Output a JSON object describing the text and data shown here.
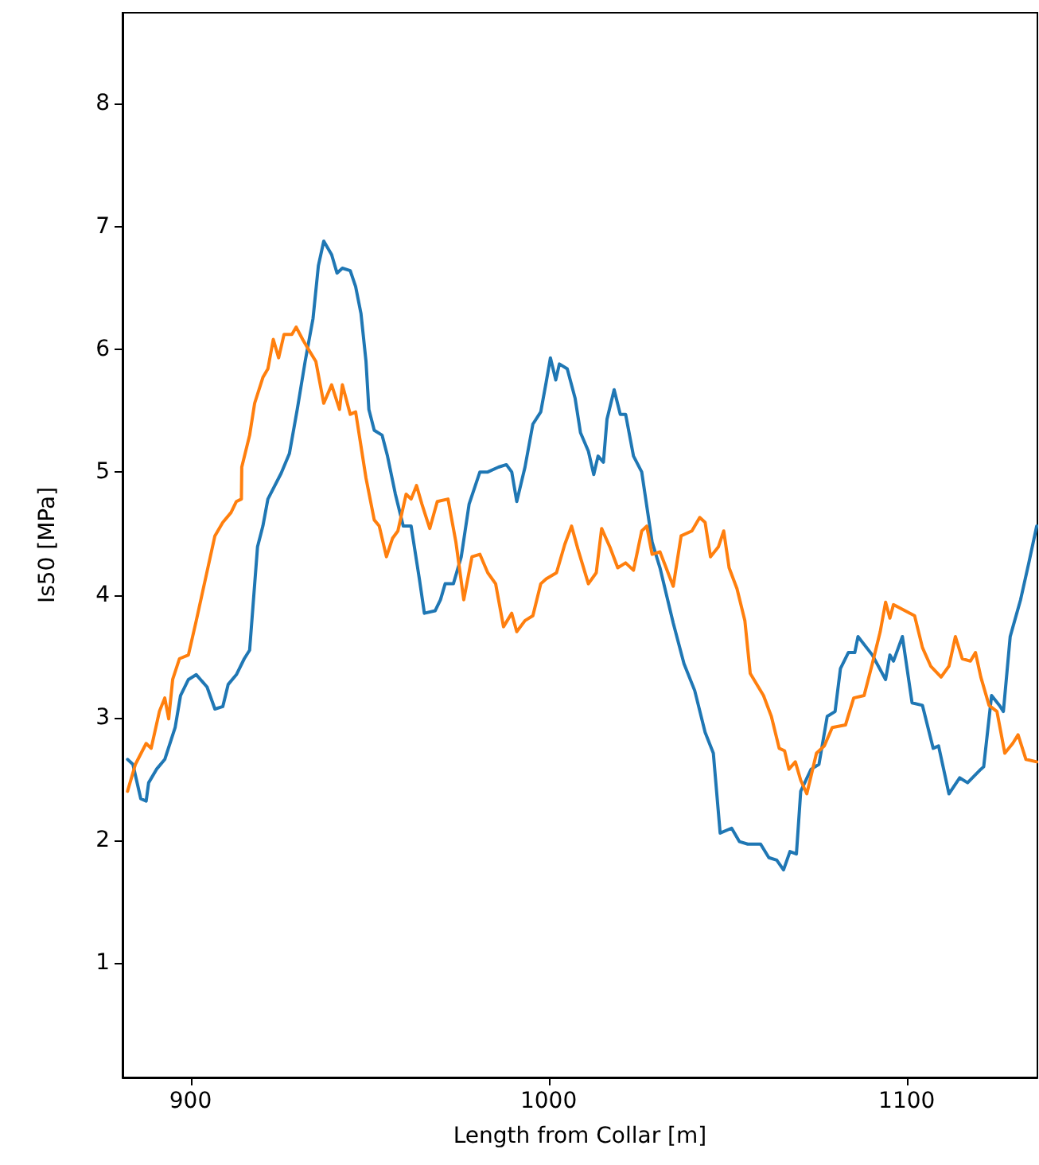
{
  "chart_data": {
    "type": "line",
    "xlabel": "Length from Collar [m]",
    "ylabel": "Is50 [MPa]",
    "xlim": [
      881,
      1136.5
    ],
    "xticks": [
      900,
      1000,
      1100
    ],
    "ylim": [
      0.07,
      8.74
    ],
    "yticks": [
      1,
      2,
      3,
      4,
      5,
      6,
      7,
      8
    ],
    "marker": "none",
    "line_style": "solid",
    "series": [
      {
        "color": "#1f77b4",
        "x": [
          882.4,
          883.9,
          886.1,
          887.6,
          888.3,
          890.5,
          892.8,
          895.7,
          897.2,
          899.4,
          901.6,
          904.6,
          906.8,
          909.0,
          910.5,
          912.8,
          915.0,
          916.5,
          918.7,
          920.2,
          921.6,
          925.3,
          927.6,
          929.8,
          932.0,
          934.2,
          935.7,
          937.2,
          939.4,
          940.9,
          942.4,
          944.6,
          946.1,
          947.6,
          949.0,
          949.8,
          951.3,
          953.5,
          955.0,
          957.2,
          959.4,
          961.6,
          963.9,
          965.3,
          968.3,
          969.8,
          971.1,
          973.4,
          975.6,
          977.8,
          980.8,
          983.0,
          986.0,
          988.2,
          989.7,
          991.1,
          993.4,
          995.6,
          997.8,
          999.3,
          1000.5,
          1002.0,
          1003.0,
          1005.2,
          1007.4,
          1008.9,
          1011.1,
          1012.6,
          1013.8,
          1015.3,
          1016.3,
          1018.3,
          1020.0,
          1021.5,
          1023.7,
          1026.0,
          1028.9,
          1031.1,
          1034.8,
          1037.8,
          1040.8,
          1043.7,
          1046.0,
          1047.9,
          1051.1,
          1053.3,
          1055.6,
          1059.2,
          1061.5,
          1063.7,
          1065.6,
          1067.4,
          1069.2,
          1070.4,
          1073.3,
          1075.5,
          1077.8,
          1080.0,
          1081.5,
          1083.7,
          1085.5,
          1086.4,
          1090.4,
          1094.1,
          1095.3,
          1096.3,
          1098.8,
          1101.5,
          1104.4,
          1107.4,
          1108.9,
          1111.8,
          1114.8,
          1117.0,
          1120.7,
          1121.5,
          1123.7,
          1125.9,
          1127.0,
          1128.9,
          1131.8,
          1134.1,
          1136.3
        ],
        "values": [
          2.66,
          2.62,
          2.34,
          2.32,
          2.47,
          2.58,
          2.66,
          2.92,
          3.18,
          3.31,
          3.35,
          3.25,
          3.07,
          3.09,
          3.27,
          3.35,
          3.48,
          3.55,
          4.39,
          4.56,
          4.78,
          4.99,
          5.15,
          5.51,
          5.9,
          6.25,
          6.68,
          6.88,
          6.77,
          6.62,
          6.66,
          6.64,
          6.51,
          6.29,
          5.9,
          5.51,
          5.34,
          5.3,
          5.13,
          4.82,
          4.56,
          4.56,
          4.13,
          3.85,
          3.87,
          3.96,
          4.09,
          4.09,
          4.31,
          4.74,
          5.0,
          5.0,
          5.04,
          5.06,
          5.0,
          4.76,
          5.04,
          5.39,
          5.49,
          5.73,
          5.93,
          5.75,
          5.88,
          5.84,
          5.6,
          5.32,
          5.17,
          4.98,
          5.13,
          5.08,
          5.43,
          5.67,
          5.47,
          5.47,
          5.13,
          5.0,
          4.43,
          4.22,
          3.77,
          3.44,
          3.22,
          2.88,
          2.71,
          2.06,
          2.1,
          1.99,
          1.97,
          1.97,
          1.86,
          1.84,
          1.76,
          1.91,
          1.89,
          2.4,
          2.58,
          2.62,
          3.01,
          3.05,
          3.4,
          3.53,
          3.53,
          3.66,
          3.51,
          3.31,
          3.51,
          3.46,
          3.66,
          3.12,
          3.1,
          2.75,
          2.77,
          2.38,
          2.51,
          2.47,
          2.58,
          2.6,
          3.18,
          3.1,
          3.05,
          3.66,
          3.96,
          4.26,
          4.56
        ]
      },
      {
        "color": "#ff7f0e",
        "x": [
          882.4,
          884.6,
          887.6,
          889.0,
          891.3,
          892.8,
          893.9,
          895.0,
          896.9,
          899.4,
          901.6,
          906.8,
          909.0,
          911.3,
          912.8,
          914.2,
          914.3,
          916.5,
          917.9,
          920.2,
          921.6,
          923.1,
          924.6,
          926.1,
          928.3,
          929.5,
          931.3,
          932.7,
          935.0,
          937.2,
          939.4,
          941.6,
          942.4,
          944.6,
          946.1,
          949.0,
          951.3,
          952.7,
          954.7,
          956.4,
          957.9,
          960.2,
          961.6,
          963.1,
          964.6,
          966.8,
          968.9,
          971.9,
          974.1,
          976.3,
          978.6,
          980.8,
          983.0,
          985.2,
          987.4,
          989.7,
          991.1,
          993.4,
          995.6,
          997.8,
          999.3,
          1002.2,
          1004.5,
          1006.4,
          1008.2,
          1011.1,
          1013.3,
          1014.8,
          1017.1,
          1019.3,
          1021.5,
          1023.7,
          1026.0,
          1027.4,
          1028.9,
          1031.1,
          1034.8,
          1037.0,
          1040.0,
          1042.2,
          1043.7,
          1045.2,
          1047.4,
          1048.9,
          1050.4,
          1052.6,
          1054.8,
          1056.3,
          1060.0,
          1062.2,
          1064.4,
          1065.9,
          1067.1,
          1068.9,
          1070.4,
          1072.1,
          1074.8,
          1077.0,
          1079.2,
          1082.9,
          1085.2,
          1088.1,
          1090.4,
          1092.6,
          1094.1,
          1095.3,
          1096.3,
          1102.2,
          1104.4,
          1106.7,
          1109.6,
          1111.8,
          1113.6,
          1115.5,
          1117.8,
          1119.2,
          1120.7,
          1123.0,
          1125.2,
          1127.4,
          1129.6,
          1131.1,
          1133.3,
          1136.3
        ],
        "values": [
          2.4,
          2.62,
          2.79,
          2.75,
          3.05,
          3.16,
          2.99,
          3.31,
          3.48,
          3.51,
          3.79,
          4.48,
          4.59,
          4.67,
          4.76,
          4.78,
          5.04,
          5.3,
          5.56,
          5.77,
          5.84,
          6.08,
          5.93,
          6.12,
          6.12,
          6.18,
          6.08,
          6.01,
          5.9,
          5.56,
          5.71,
          5.51,
          5.71,
          5.47,
          5.49,
          4.95,
          4.61,
          4.56,
          4.31,
          4.46,
          4.52,
          4.82,
          4.78,
          4.89,
          4.74,
          4.54,
          4.76,
          4.78,
          4.43,
          3.96,
          4.31,
          4.33,
          4.18,
          4.09,
          3.74,
          3.85,
          3.7,
          3.79,
          3.83,
          4.09,
          4.13,
          4.18,
          4.41,
          4.56,
          4.37,
          4.09,
          4.18,
          4.54,
          4.39,
          4.22,
          4.26,
          4.2,
          4.52,
          4.56,
          4.33,
          4.35,
          4.07,
          4.48,
          4.52,
          4.63,
          4.59,
          4.31,
          4.39,
          4.52,
          4.22,
          4.05,
          3.79,
          3.36,
          3.18,
          3.01,
          2.75,
          2.73,
          2.58,
          2.64,
          2.49,
          2.38,
          2.71,
          2.77,
          2.92,
          2.94,
          3.16,
          3.18,
          3.44,
          3.7,
          3.94,
          3.81,
          3.92,
          3.83,
          3.57,
          3.42,
          3.33,
          3.42,
          3.66,
          3.48,
          3.46,
          3.53,
          3.33,
          3.1,
          3.05,
          2.71,
          2.79,
          2.86,
          2.66,
          2.64
        ]
      }
    ]
  }
}
